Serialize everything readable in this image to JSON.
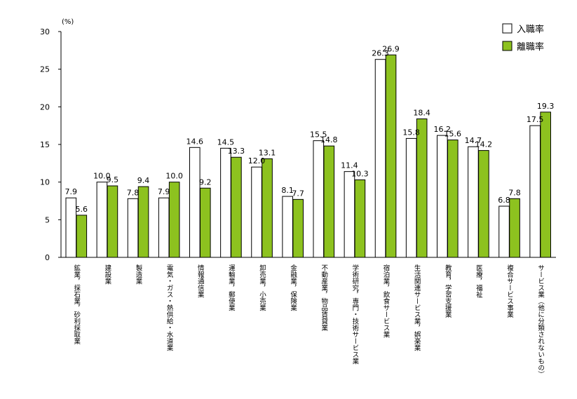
{
  "chart_data": {
    "type": "bar",
    "unit_label": "(%)",
    "ylim": [
      0,
      30
    ],
    "yticks": [
      0,
      5,
      10,
      15,
      20,
      25,
      30
    ],
    "grid": false,
    "legend_position": "top-right",
    "categories": [
      "鉱業，採石業，砂利採取業",
      "建設業",
      "製造業",
      "電気・ガス・熱供給・水道業",
      "情報通信業",
      "運輸業，郵便業",
      "卸売業，小売業",
      "金融業，保険業",
      "不動産業，物品賃貸業",
      "学術研究，専門・技術サービス業",
      "宿泊業，飲食サービス業",
      "生活関連サービス業，娯楽業",
      "教育，学習支援業",
      "医療，福祉",
      "複合サービス事業",
      "サービス業（他に分類されないもの）"
    ],
    "series": [
      {
        "name": "入職率",
        "color": "#ffffff",
        "values": [
          7.9,
          10.0,
          7.8,
          7.9,
          14.6,
          14.5,
          12.0,
          8.1,
          15.5,
          11.4,
          26.3,
          15.8,
          16.2,
          14.7,
          6.8,
          17.5
        ]
      },
      {
        "name": "離職率",
        "color": "#8dc21f",
        "values": [
          5.6,
          9.5,
          9.4,
          10.0,
          9.2,
          13.3,
          13.1,
          7.7,
          14.8,
          10.3,
          26.9,
          18.4,
          15.6,
          14.2,
          7.8,
          19.3
        ]
      }
    ]
  }
}
